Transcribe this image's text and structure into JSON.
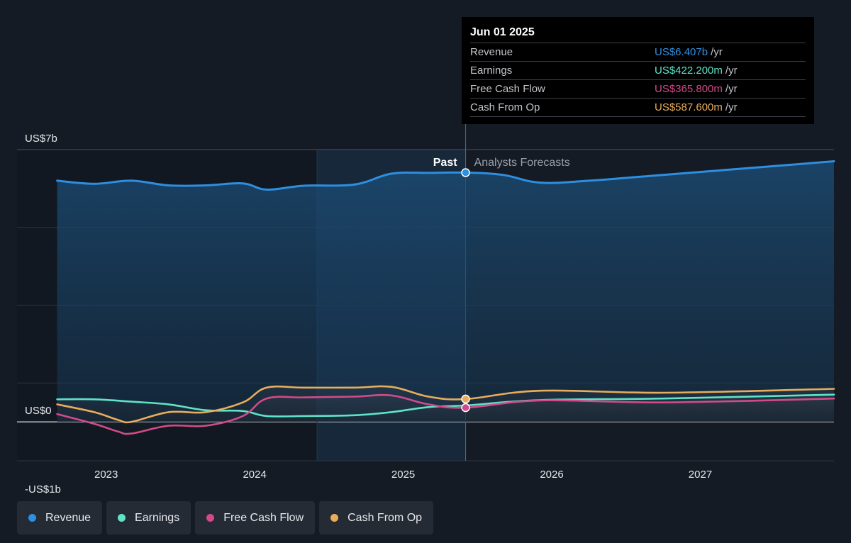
{
  "colors": {
    "revenue": "#2d8fe0",
    "earnings": "#5fe3c8",
    "free_cash_flow": "#d14b8a",
    "cash_from_op": "#e8ad5c"
  },
  "tooltip": {
    "date": "Jun 01 2025",
    "rows": [
      {
        "label": "Revenue",
        "value": "US$6.407b",
        "unit": "/yr"
      },
      {
        "label": "Earnings",
        "value": "US$422.200m",
        "unit": "/yr"
      },
      {
        "label": "Free Cash Flow",
        "value": "US$365.800m",
        "unit": "/yr"
      },
      {
        "label": "Cash From Op",
        "value": "US$587.600m",
        "unit": "/yr"
      }
    ]
  },
  "legend": [
    {
      "label": "Revenue",
      "color": "#2d8fe0"
    },
    {
      "label": "Earnings",
      "color": "#5fe3c8"
    },
    {
      "label": "Free Cash Flow",
      "color": "#d14b8a"
    },
    {
      "label": "Cash From Op",
      "color": "#e8ad5c"
    }
  ],
  "chart_data": {
    "type": "line",
    "y_axis_labels": [
      "US$7b",
      "US$0",
      "-US$1b"
    ],
    "x_ticks": [
      "2023",
      "2024",
      "2025",
      "2026",
      "2027"
    ],
    "ylim": [
      -1,
      7
    ],
    "xlim": [
      2022.4,
      2027.9
    ],
    "past_label": "Past",
    "forecast_label": "Analysts Forecasts",
    "divider_x": 2025.42,
    "shade_start_x": 2024.42,
    "grid": true,
    "series": [
      {
        "name": "Revenue",
        "x": [
          2022.67,
          2022.92,
          2023.17,
          2023.42,
          2023.67,
          2023.92,
          2024.08,
          2024.33,
          2024.67,
          2024.92,
          2025.17,
          2025.42,
          2025.67,
          2025.92,
          2026.25,
          2026.75,
          2027.25,
          2027.9
        ],
        "values": [
          6.2,
          6.12,
          6.2,
          6.08,
          6.08,
          6.13,
          5.97,
          6.07,
          6.1,
          6.38,
          6.4,
          6.407,
          6.35,
          6.15,
          6.2,
          6.35,
          6.5,
          6.7
        ]
      },
      {
        "name": "Earnings",
        "x": [
          2022.67,
          2022.92,
          2023.17,
          2023.42,
          2023.67,
          2023.92,
          2024.08,
          2024.33,
          2024.67,
          2024.92,
          2025.17,
          2025.42,
          2025.92,
          2026.75,
          2027.9
        ],
        "values": [
          0.58,
          0.58,
          0.52,
          0.45,
          0.3,
          0.28,
          0.15,
          0.15,
          0.17,
          0.25,
          0.38,
          0.4222,
          0.56,
          0.6,
          0.7
        ]
      },
      {
        "name": "Free Cash Flow",
        "x": [
          2022.67,
          2022.92,
          2023.08,
          2023.17,
          2023.42,
          2023.67,
          2023.92,
          2024.08,
          2024.33,
          2024.67,
          2024.92,
          2025.17,
          2025.42,
          2025.92,
          2026.75,
          2027.9
        ],
        "values": [
          0.2,
          -0.05,
          -0.25,
          -0.3,
          -0.1,
          -0.1,
          0.15,
          0.6,
          0.63,
          0.65,
          0.68,
          0.45,
          0.3658,
          0.55,
          0.5,
          0.6
        ]
      },
      {
        "name": "Cash From Op",
        "x": [
          2022.67,
          2022.92,
          2023.08,
          2023.17,
          2023.42,
          2023.67,
          2023.92,
          2024.08,
          2024.33,
          2024.67,
          2024.92,
          2025.17,
          2025.42,
          2025.92,
          2026.75,
          2027.9
        ],
        "values": [
          0.45,
          0.25,
          0.05,
          0.0,
          0.25,
          0.25,
          0.5,
          0.88,
          0.88,
          0.88,
          0.9,
          0.65,
          0.5876,
          0.8,
          0.75,
          0.85
        ]
      }
    ]
  }
}
